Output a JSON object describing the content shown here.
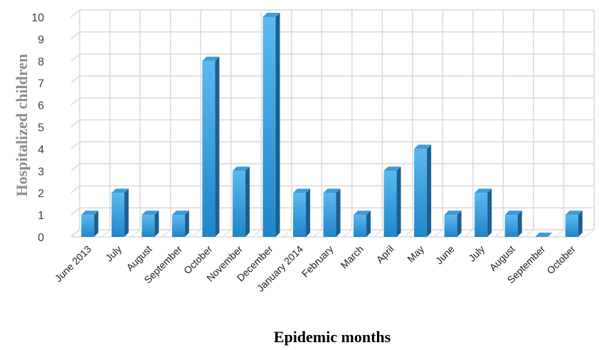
{
  "chart_data": {
    "type": "bar",
    "xlabel": "Epidemic months",
    "ylabel": "Hospitalized children",
    "ylim": [
      0,
      10
    ],
    "yticks": [
      0,
      1,
      2,
      3,
      4,
      5,
      6,
      7,
      8,
      9,
      10
    ],
    "grid": true,
    "categories": [
      "June 2013",
      "July",
      "August",
      "September",
      "October",
      "November",
      "December",
      "January 2014",
      "February",
      "March",
      "April",
      "May",
      "June",
      "July",
      "August",
      "September",
      "October"
    ],
    "values": [
      1,
      2,
      1,
      1,
      8,
      3,
      10,
      2,
      2,
      1,
      3,
      4,
      1,
      2,
      1,
      0,
      1
    ],
    "colors": {
      "bar_front_top": "#5cb8ee",
      "bar_front_bottom": "#1f86c8",
      "bar_side": "#1a5f93",
      "bar_top": "#3f9ad6",
      "grid": "#d9d9d9"
    }
  }
}
